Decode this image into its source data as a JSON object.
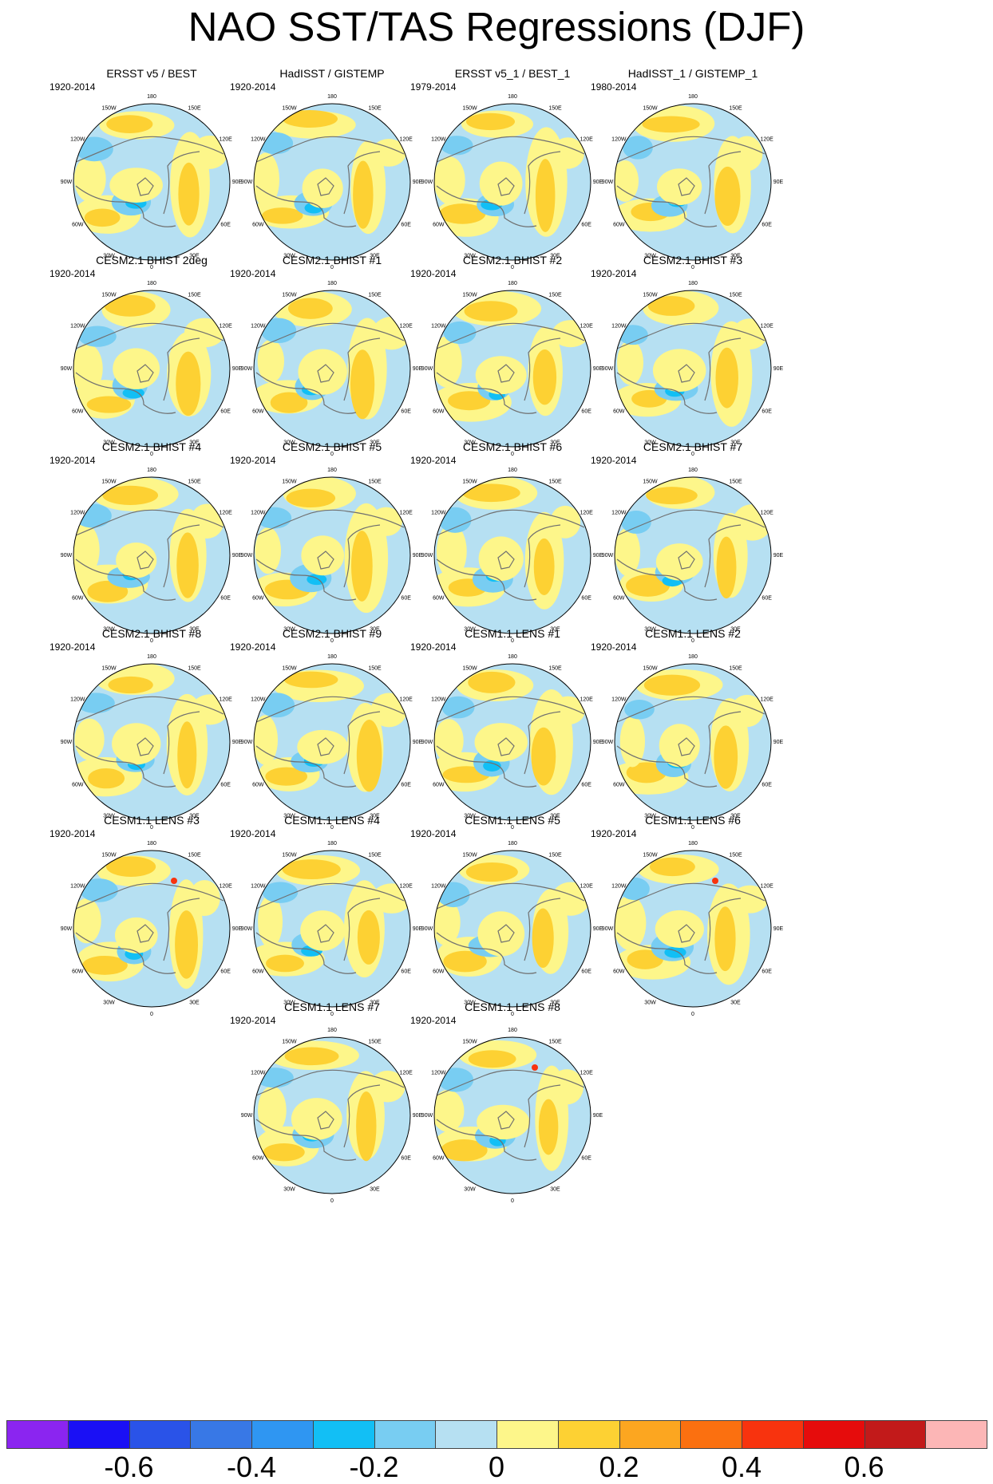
{
  "title": "NAO SST/TAS Regressions (DJF)",
  "colors": {
    "levels": [
      "#8b25f0",
      "#1a10f5",
      "#2a53e8",
      "#3878e6",
      "#2f96f2",
      "#12bff5",
      "#78cdf2",
      "#b6e0f2",
      "#fdf68a",
      "#fdd133",
      "#fca620",
      "#fb7010",
      "#f8330e",
      "#e60c0c",
      "#c21a1a",
      "#fcb6b6"
    ],
    "land_outline": "#707070",
    "pole_gray": "#888888"
  },
  "colorbar": {
    "labels": [
      "-0.6",
      "-0.4",
      "-0.2",
      "0",
      "0.2",
      "0.4",
      "0.6"
    ]
  },
  "lon_labels": [
    "180",
    "150E",
    "120E",
    "90E",
    "60E",
    "30E",
    "0",
    "30W",
    "60W",
    "90W",
    "120W",
    "150W"
  ],
  "panels": [
    {
      "title": "ERSST v5 / BEST",
      "period": "1920-2014"
    },
    {
      "title": "HadISST / GISTEMP",
      "period": "1920-2014"
    },
    {
      "title": "ERSST v5_1 / BEST_1",
      "period": "1979-2014"
    },
    {
      "title": "HadISST_1 / GISTEMP_1",
      "period": "1980-2014"
    },
    {
      "title": "CESM2.1 BHIST 2deg",
      "period": "1920-2014"
    },
    {
      "title": "CESM2.1 BHIST #1",
      "period": "1920-2014"
    },
    {
      "title": "CESM2.1 BHIST #2",
      "period": "1920-2014"
    },
    {
      "title": "CESM2.1 BHIST #3",
      "period": "1920-2014"
    },
    {
      "title": "CESM2.1 BHIST #4",
      "period": "1920-2014"
    },
    {
      "title": "CESM2.1 BHIST #5",
      "period": "1920-2014"
    },
    {
      "title": "CESM2.1 BHIST #6",
      "period": "1920-2014"
    },
    {
      "title": "CESM2.1 BHIST #7",
      "period": "1920-2014"
    },
    {
      "title": "CESM2.1 BHIST #8",
      "period": "1920-2014"
    },
    {
      "title": "CESM2.1 BHIST #9",
      "period": "1920-2014"
    },
    {
      "title": "CESM1.1 LENS #1",
      "period": "1920-2014"
    },
    {
      "title": "CESM1.1 LENS #2",
      "period": "1920-2014"
    },
    {
      "title": "CESM1.1 LENS #3",
      "period": "1920-2014"
    },
    {
      "title": "CESM1.1 LENS #4",
      "period": "1920-2014"
    },
    {
      "title": "CESM1.1 LENS #5",
      "period": "1920-2014"
    },
    {
      "title": "CESM1.1 LENS #6",
      "period": "1920-2014"
    },
    {
      "title": "CESM1.1 LENS #7",
      "period": "1920-2014"
    },
    {
      "title": "CESM1.1 LENS #8",
      "period": "1920-2014"
    }
  ]
}
